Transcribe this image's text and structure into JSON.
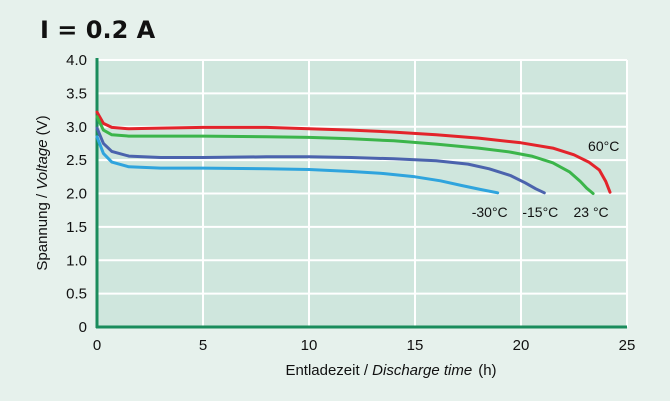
{
  "chart_data": {
    "type": "line",
    "title": "I = 0.2 A",
    "xlabel": {
      "plain": "Entladezeit / ",
      "italic": "Discharge time",
      "unit": "(h)"
    },
    "ylabel": {
      "plain": "Spannung / ",
      "italic": "Voltage",
      "unit": "(V)"
    },
    "xlim": [
      0,
      25
    ],
    "ylim": [
      0,
      4.0
    ],
    "xticks": [
      0,
      5,
      10,
      15,
      20,
      25
    ],
    "yticks": [
      0,
      0.5,
      1.0,
      1.5,
      2.0,
      2.5,
      3.0,
      3.5,
      4.0
    ],
    "ytick_labels": [
      "0",
      "0.5",
      "1.0",
      "1.5",
      "2.0",
      "2.5",
      "3.0",
      "3.5",
      "4.0"
    ],
    "xtick_labels": [
      "0",
      "5",
      "10",
      "15",
      "20",
      "25"
    ],
    "grid": true,
    "series": [
      {
        "name": "60°C",
        "color": "#e3242b",
        "x": [
          0,
          0.3,
          0.7,
          1.5,
          3,
          5,
          8,
          10,
          12,
          14,
          16,
          18,
          20,
          21.5,
          22.5,
          23.2,
          23.7,
          24.0,
          24.2
        ],
        "y": [
          3.22,
          3.05,
          2.99,
          2.97,
          2.98,
          2.99,
          2.99,
          2.97,
          2.95,
          2.92,
          2.88,
          2.83,
          2.76,
          2.68,
          2.58,
          2.47,
          2.35,
          2.18,
          2.02
        ]
      },
      {
        "name": "23 °C",
        "color": "#3bb54a",
        "x": [
          0,
          0.3,
          0.7,
          1.5,
          3,
          5,
          8,
          10,
          12,
          14,
          16,
          18,
          19.5,
          20.5,
          21.5,
          22.3,
          22.8,
          23.1,
          23.4
        ],
        "y": [
          3.15,
          2.95,
          2.88,
          2.86,
          2.86,
          2.86,
          2.85,
          2.84,
          2.82,
          2.79,
          2.74,
          2.68,
          2.62,
          2.56,
          2.46,
          2.32,
          2.18,
          2.08,
          2.0
        ]
      },
      {
        "name": "-15°C",
        "color": "#4b63ad",
        "x": [
          0,
          0.3,
          0.7,
          1.5,
          3,
          5,
          8,
          10,
          12,
          14,
          16,
          17.5,
          18.5,
          19.5,
          20.2,
          20.7,
          21.1
        ],
        "y": [
          2.98,
          2.75,
          2.63,
          2.56,
          2.54,
          2.54,
          2.55,
          2.55,
          2.54,
          2.52,
          2.49,
          2.44,
          2.37,
          2.27,
          2.16,
          2.07,
          2.01
        ]
      },
      {
        "name": "-30°C",
        "color": "#2fa4dd",
        "x": [
          0,
          0.3,
          0.7,
          1.5,
          3,
          5,
          8,
          10,
          12,
          13.5,
          15,
          16.2,
          17.2,
          18.1,
          18.9
        ],
        "y": [
          2.85,
          2.6,
          2.47,
          2.4,
          2.38,
          2.38,
          2.37,
          2.36,
          2.33,
          2.3,
          2.25,
          2.19,
          2.12,
          2.06,
          2.01
        ]
      }
    ]
  }
}
